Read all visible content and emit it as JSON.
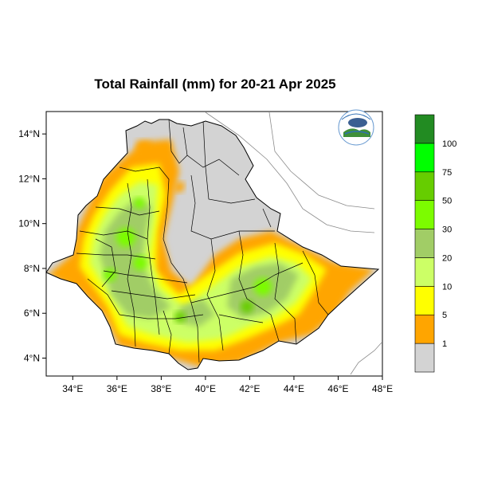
{
  "title": "Total Rainfall (mm) for 20-21 Apr 2025",
  "lon_ticks": [
    "34°E",
    "36°E",
    "38°E",
    "40°E",
    "42°E",
    "44°E",
    "46°E",
    "48°E"
  ],
  "lat_ticks": [
    "14°N",
    "12°N",
    "10°N",
    "8°N",
    "6°N",
    "4°N"
  ],
  "lon_range": [
    32.8,
    48.0
  ],
  "lat_range": [
    3.2,
    15.0
  ],
  "legend": {
    "classes": [
      {
        "color": "#d3d3d3",
        "label": "1"
      },
      {
        "color": "#ffa500",
        "label": "5"
      },
      {
        "color": "#ffff00",
        "label": "10"
      },
      {
        "color": "#ccff66",
        "label": "20"
      },
      {
        "color": "#a1cd66",
        "label": "30"
      },
      {
        "color": "#7cfc00",
        "label": "50"
      },
      {
        "color": "#66cd00",
        "label": "75"
      },
      {
        "color": "#00ff00",
        "label": "100"
      },
      {
        "color": "#228b22",
        "label": ""
      }
    ]
  },
  "colors": {
    "no_rain": "#d3d3d3",
    "light": "#ffa500",
    "moderate": "#ffff00",
    "heavy": "#a1cd66",
    "boundary": "#000000",
    "neighbor_border": "#808080"
  },
  "logo": {
    "name": "meteorology-agency-logo"
  }
}
